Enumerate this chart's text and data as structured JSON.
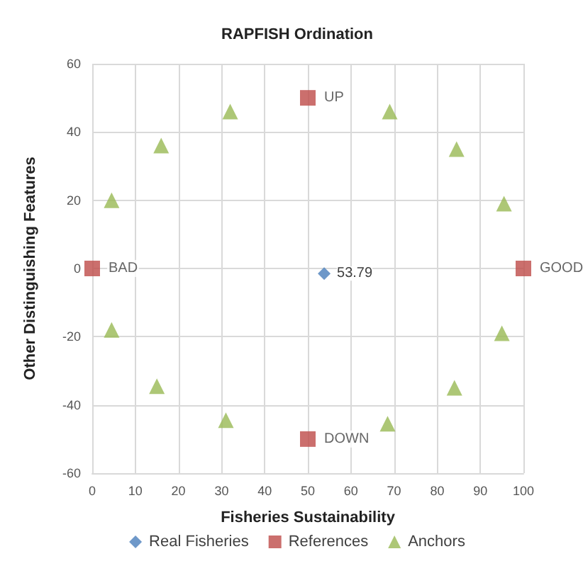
{
  "chart_data": {
    "type": "scatter",
    "title": "RAPFISH Ordination",
    "xlabel": "Fisheries Sustainability",
    "ylabel": "Other Distinguishing Features",
    "xlim": [
      0,
      100
    ],
    "xticks": [
      0,
      10,
      20,
      30,
      40,
      50,
      60,
      70,
      80,
      90,
      100
    ],
    "ylim": [
      -60,
      60
    ],
    "yticks": [
      -60,
      -40,
      -20,
      0,
      20,
      40,
      60
    ],
    "grid": true,
    "legend": "bottom",
    "annotations": [
      {
        "text": "53.79",
        "x": 53.79,
        "y": -1.5
      }
    ],
    "series": [
      {
        "name": "Real Fisheries",
        "color": "#4a7ebb",
        "marker": "diamond",
        "x": [
          53.79
        ],
        "values": [
          -1.5
        ]
      },
      {
        "name": "References",
        "color": "#be4b48",
        "marker": "square",
        "x": [
          0,
          50,
          50,
          100
        ],
        "values": [
          0,
          50,
          -50,
          0
        ],
        "value_labels": [
          "BAD",
          "UP",
          "DOWN",
          "GOOD"
        ]
      },
      {
        "name": "Anchors",
        "color": "#98b954",
        "marker": "triangle",
        "x": [
          4.5,
          16,
          32,
          69,
          84.5,
          95.5,
          4.5,
          15,
          31,
          68.5,
          84,
          95
        ],
        "values": [
          20,
          36,
          46,
          46,
          35,
          19,
          -18,
          -34.5,
          -44.5,
          -45.5,
          -35,
          -19
        ]
      }
    ]
  }
}
